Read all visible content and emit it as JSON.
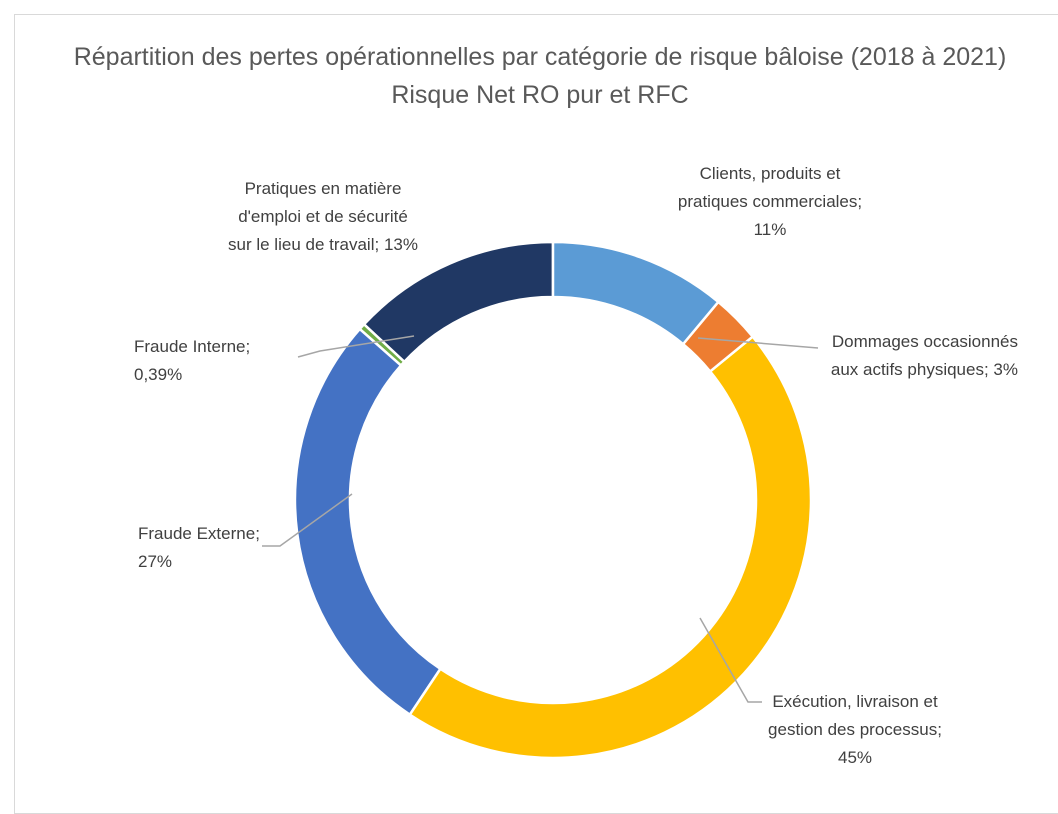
{
  "chart_data": {
    "type": "donut",
    "title": "Répartition des pertes opérationnelles par catégorie de risque bâloise (2018 à 2021) Risque Net RO pur et RFC",
    "categories": [
      "Clients, produits et pratiques commerciales",
      "Dommages occasionnés aux actifs physiques",
      "Exécution, livraison et gestion des processus",
      "Fraude Externe",
      "Fraude Interne",
      "Pratiques en matière d'emploi et de sécurité sur le lieu de travail"
    ],
    "values": [
      11,
      3,
      45,
      27,
      0.39,
      13
    ],
    "value_labels": [
      "11%",
      "3%",
      "45%",
      "27%",
      "0,39%",
      "13%"
    ],
    "label_separator": "; ",
    "colors": [
      "#5b9bd5",
      "#ed7d31",
      "#ffc000",
      "#4472c4",
      "#70ad47",
      "#203864"
    ]
  }
}
